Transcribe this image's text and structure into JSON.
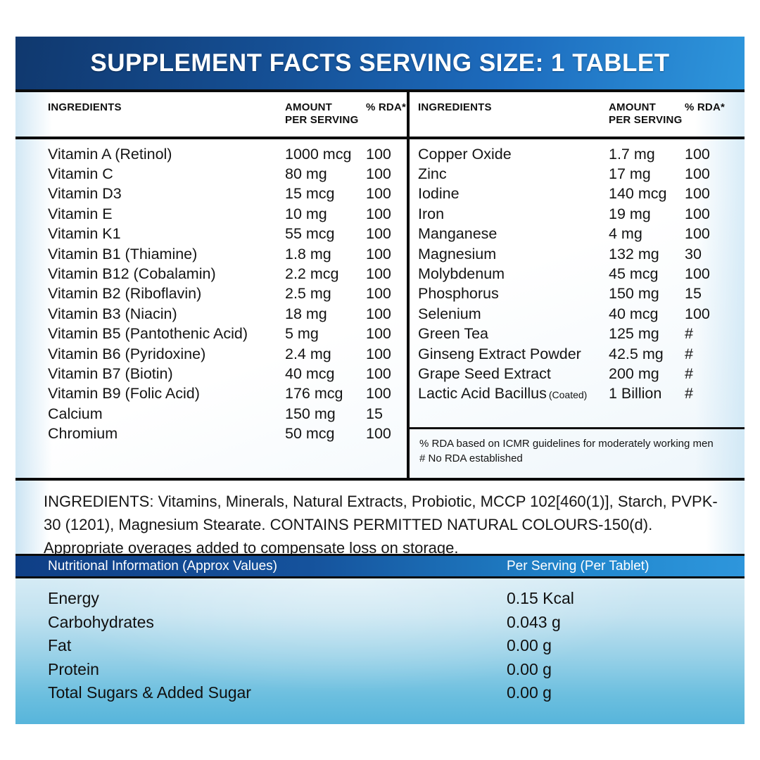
{
  "title_bar": {
    "text": "SUPPLEMENT FACTS SERVING SIZE: 1 TABLET"
  },
  "table": {
    "col_headers": {
      "ingredients": "INGREDIENTS",
      "amount_line1": "AMOUNT",
      "amount_line2": "PER SERVING",
      "rda": "% RDA*"
    },
    "left_rows": [
      {
        "name": "Vitamin A (Retinol)",
        "amount": "1000 mcg",
        "rda": "100"
      },
      {
        "name": "Vitamin C",
        "amount": "80 mg",
        "rda": "100"
      },
      {
        "name": "Vitamin D3",
        "amount": "15 mcg",
        "rda": "100"
      },
      {
        "name": "Vitamin E",
        "amount": "10 mg",
        "rda": "100"
      },
      {
        "name": "Vitamin K1",
        "amount": "55 mcg",
        "rda": "100"
      },
      {
        "name": "Vitamin B1 (Thiamine)",
        "amount": "1.8 mg",
        "rda": "100"
      },
      {
        "name": "Vitamin B12 (Cobalamin)",
        "amount": "2.2 mcg",
        "rda": "100"
      },
      {
        "name": "Vitamin B2 (Riboflavin)",
        "amount": "2.5 mg",
        "rda": "100"
      },
      {
        "name": "Vitamin B3 (Niacin)",
        "amount": "18 mg",
        "rda": "100"
      },
      {
        "name": "Vitamin B5 (Pantothenic Acid)",
        "amount": "5 mg",
        "rda": "100"
      },
      {
        "name": "Vitamin B6 (Pyridoxine)",
        "amount": "2.4 mg",
        "rda": "100"
      },
      {
        "name": "Vitamin B7 (Biotin)",
        "amount": "40 mcg",
        "rda": "100"
      },
      {
        "name": "Vitamin B9 (Folic Acid)",
        "amount": "176 mcg",
        "rda": "100"
      },
      {
        "name": "Calcium",
        "amount": "150 mg",
        "rda": "15"
      },
      {
        "name": "Chromium",
        "amount": "50 mcg",
        "rda": "100"
      }
    ],
    "right_rows": [
      {
        "name": "Copper Oxide",
        "amount": "1.7 mg",
        "rda": "100"
      },
      {
        "name": "Zinc",
        "amount": "17 mg",
        "rda": "100"
      },
      {
        "name": "Iodine",
        "amount": "140 mcg",
        "rda": "100"
      },
      {
        "name": "Iron",
        "amount": "19 mg",
        "rda": "100"
      },
      {
        "name": "Manganese",
        "amount": "4 mg",
        "rda": "100"
      },
      {
        "name": "Magnesium",
        "amount": "132 mg",
        "rda": "30"
      },
      {
        "name": "Molybdenum",
        "amount": "45 mcg",
        "rda": "100"
      },
      {
        "name": "Phosphorus",
        "amount": "150 mg",
        "rda": "15"
      },
      {
        "name": "Selenium",
        "amount": "40 mcg",
        "rda": "100"
      },
      {
        "name": "Green Tea",
        "amount": "125 mg",
        "rda": "#"
      },
      {
        "name": "Ginseng Extract Powder",
        "amount": "42.5 mg",
        "rda": "#"
      },
      {
        "name": "Grape Seed Extract",
        "amount": "200 mg",
        "rda": "#"
      },
      {
        "name": "Lactic Acid Bacillus",
        "name_note": "(Coated)",
        "amount": "1 Billion",
        "rda": "#"
      }
    ],
    "footnotes": [
      "% RDA based on ICMR guidelines for moderately working men",
      "# No RDA established"
    ]
  },
  "ingredients_statement": "INGREDIENTS: Vitamins, Minerals, Natural Extracts, Probiotic, MCCP 102[460(1)], Starch, PVPK-30 (1201), Magnesium Stearate. CONTAINS PERMITTED NATURAL COLOURS-150(d). Appropriate overages added to compensate loss on storage.",
  "nutrition": {
    "header_left": "Nutritional Information (Approx Values)",
    "header_right": "Per Serving (Per Tablet)",
    "rows": [
      {
        "label": "Energy",
        "value": "0.15 Kcal"
      },
      {
        "label": "Carbohydrates",
        "value": "0.043 g"
      },
      {
        "label": "Fat",
        "value": "0.00 g"
      },
      {
        "label": "Protein",
        "value": "0.00 g"
      },
      {
        "label": "Total Sugars & Added Sugar",
        "value": "0.00 g"
      }
    ]
  },
  "colors": {
    "band_dark": "#10386e",
    "band_light": "#2e96dc",
    "rule_black": "#0b0b0b",
    "nutrition_panel_top": "#d5ebf5",
    "nutrition_panel_bottom": "#57b5db",
    "text": "#141414",
    "title_text": "#ffffff"
  }
}
